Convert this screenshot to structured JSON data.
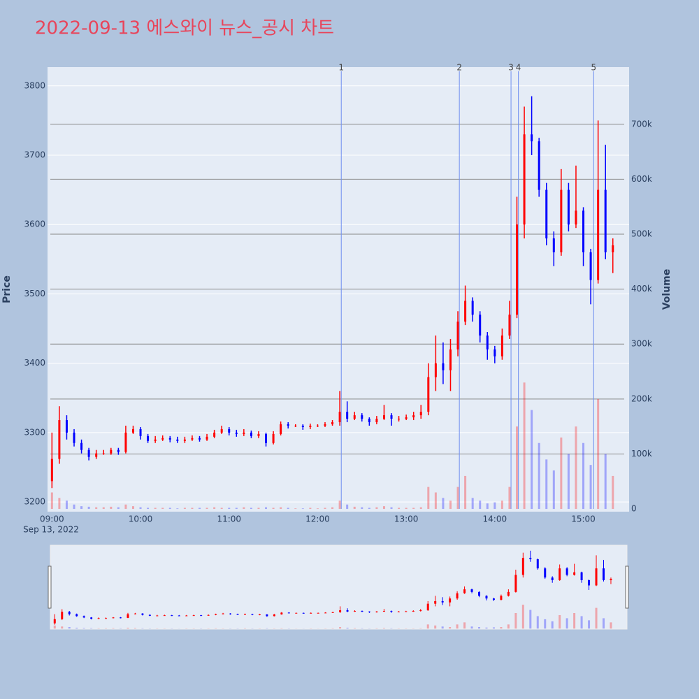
{
  "chart_data": {
    "type": "candlestick",
    "title": "2022-09-13 에스와이 뉴스_공시 차트",
    "x_date_label": "Sep 13, 2022",
    "y_axis_title": "Price",
    "y2_axis_title": "Volume",
    "up_color": "#ff0000",
    "down_color": "#0000ff",
    "grid": true,
    "x": [
      "09:00",
      "09:05",
      "09:10",
      "09:15",
      "09:20",
      "09:25",
      "09:30",
      "09:35",
      "09:40",
      "09:45",
      "09:50",
      "09:55",
      "10:00",
      "10:05",
      "10:10",
      "10:15",
      "10:20",
      "10:25",
      "10:30",
      "10:35",
      "10:40",
      "10:45",
      "10:50",
      "10:55",
      "11:00",
      "11:05",
      "11:10",
      "11:15",
      "11:20",
      "11:25",
      "11:30",
      "11:35",
      "11:40",
      "11:45",
      "11:50",
      "11:55",
      "12:00",
      "12:05",
      "12:10",
      "12:15",
      "12:20",
      "12:25",
      "12:30",
      "12:35",
      "12:40",
      "12:45",
      "12:50",
      "12:55",
      "13:00",
      "13:05",
      "13:10",
      "13:15",
      "13:20",
      "13:25",
      "13:30",
      "13:35",
      "13:40",
      "13:45",
      "13:50",
      "13:55",
      "14:00",
      "14:05",
      "14:10",
      "14:15",
      "14:20",
      "14:25",
      "14:30",
      "14:35",
      "14:40",
      "14:45",
      "14:50",
      "14:55",
      "15:00",
      "15:05",
      "15:10",
      "15:15",
      "15:20"
    ],
    "open": [
      3230,
      3262,
      3318,
      3300,
      3285,
      3275,
      3265,
      3270,
      3270,
      3275,
      3272,
      3300,
      3305,
      3295,
      3288,
      3290,
      3292,
      3290,
      3288,
      3290,
      3292,
      3290,
      3294,
      3300,
      3305,
      3300,
      3298,
      3300,
      3295,
      3298,
      3285,
      3298,
      3312,
      3310,
      3310,
      3308,
      3310,
      3310,
      3312,
      3315,
      3330,
      3320,
      3325,
      3320,
      3315,
      3320,
      3325,
      3320,
      3320,
      3322,
      3325,
      3330,
      3380,
      3400,
      3390,
      3420,
      3460,
      3490,
      3470,
      3440,
      3420,
      3410,
      3440,
      3470,
      3600,
      3730,
      3720,
      3650,
      3580,
      3560,
      3650,
      3600,
      3620,
      3560,
      3520,
      3650,
      3560
    ],
    "high": [
      3300,
      3338,
      3325,
      3305,
      3290,
      3278,
      3275,
      3275,
      3278,
      3278,
      3310,
      3310,
      3308,
      3298,
      3295,
      3296,
      3295,
      3294,
      3294,
      3296,
      3295,
      3298,
      3304,
      3310,
      3308,
      3304,
      3305,
      3303,
      3302,
      3300,
      3302,
      3316,
      3315,
      3312,
      3312,
      3313,
      3312,
      3315,
      3318,
      3360,
      3345,
      3330,
      3328,
      3322,
      3324,
      3340,
      3328,
      3324,
      3326,
      3330,
      3340,
      3400,
      3440,
      3430,
      3435,
      3475,
      3512,
      3495,
      3475,
      3445,
      3425,
      3450,
      3490,
      3640,
      3770,
      3785,
      3725,
      3660,
      3590,
      3680,
      3660,
      3685,
      3625,
      3565,
      3750,
      3715,
      3580
    ],
    "low": [
      3220,
      3255,
      3290,
      3280,
      3270,
      3260,
      3262,
      3268,
      3268,
      3268,
      3270,
      3298,
      3290,
      3285,
      3285,
      3288,
      3286,
      3285,
      3285,
      3288,
      3287,
      3288,
      3292,
      3298,
      3296,
      3294,
      3295,
      3292,
      3292,
      3280,
      3283,
      3296,
      3306,
      3308,
      3304,
      3305,
      3308,
      3308,
      3310,
      3310,
      3315,
      3318,
      3316,
      3310,
      3312,
      3318,
      3310,
      3316,
      3318,
      3318,
      3320,
      3325,
      3360,
      3370,
      3360,
      3410,
      3455,
      3460,
      3430,
      3405,
      3400,
      3405,
      3435,
      3465,
      3580,
      3700,
      3640,
      3570,
      3540,
      3555,
      3590,
      3595,
      3540,
      3485,
      3515,
      3550,
      3530
    ],
    "close": [
      3262,
      3318,
      3300,
      3285,
      3275,
      3265,
      3270,
      3270,
      3275,
      3272,
      3300,
      3305,
      3295,
      3288,
      3290,
      3292,
      3290,
      3288,
      3290,
      3292,
      3290,
      3294,
      3300,
      3305,
      3300,
      3298,
      3300,
      3295,
      3298,
      3285,
      3298,
      3312,
      3310,
      3310,
      3308,
      3310,
      3310,
      3312,
      3315,
      3330,
      3320,
      3325,
      3320,
      3315,
      3320,
      3325,
      3320,
      3320,
      3322,
      3325,
      3330,
      3380,
      3400,
      3390,
      3420,
      3460,
      3490,
      3470,
      3440,
      3420,
      3410,
      3440,
      3470,
      3600,
      3730,
      3720,
      3650,
      3580,
      3560,
      3650,
      3600,
      3620,
      3560,
      3520,
      3650,
      3560,
      3570
    ],
    "volume": [
      30000,
      20000,
      15000,
      8000,
      5000,
      4000,
      3000,
      3000,
      4000,
      3000,
      8000,
      5000,
      3000,
      2000,
      2000,
      2000,
      2000,
      1000,
      2000,
      2000,
      2000,
      2000,
      3000,
      2000,
      2000,
      2000,
      3000,
      2000,
      2000,
      3000,
      2000,
      3000,
      2000,
      1000,
      1000,
      2000,
      1000,
      2000,
      3000,
      15000,
      8000,
      4000,
      3000,
      2000,
      3000,
      5000,
      3000,
      2000,
      2000,
      2000,
      3000,
      40000,
      30000,
      20000,
      15000,
      40000,
      60000,
      20000,
      15000,
      10000,
      12000,
      15000,
      40000,
      150000,
      230000,
      180000,
      120000,
      90000,
      70000,
      130000,
      100000,
      150000,
      120000,
      80000,
      200000,
      100000,
      60000
    ],
    "xlim": [
      "08:57",
      "15:31"
    ],
    "xticks": [
      "09:00",
      "10:00",
      "11:00",
      "12:00",
      "13:00",
      "14:00",
      "15:00"
    ],
    "ylim": [
      3186,
      3827
    ],
    "yticks": [
      3200,
      3300,
      3400,
      3500,
      3600,
      3700,
      3800
    ],
    "y2lim": [
      -5000,
      804000
    ],
    "y2ticks": [
      0,
      {
        "value": 100000,
        "label": "100k"
      },
      {
        "value": 200000,
        "label": "200k"
      },
      {
        "value": 300000,
        "label": "300k"
      },
      {
        "value": 400000,
        "label": "400k"
      },
      {
        "value": 500000,
        "label": "500k"
      },
      {
        "value": 600000,
        "label": "600k"
      },
      {
        "value": 700000,
        "label": "700k"
      }
    ],
    "annotations": [
      {
        "label": "1",
        "x": "12:16"
      },
      {
        "label": "2",
        "x": "13:36"
      },
      {
        "label": "3",
        "x": "14:11"
      },
      {
        "label": "4",
        "x": "14:16"
      },
      {
        "label": "5",
        "x": "15:07"
      }
    ]
  }
}
